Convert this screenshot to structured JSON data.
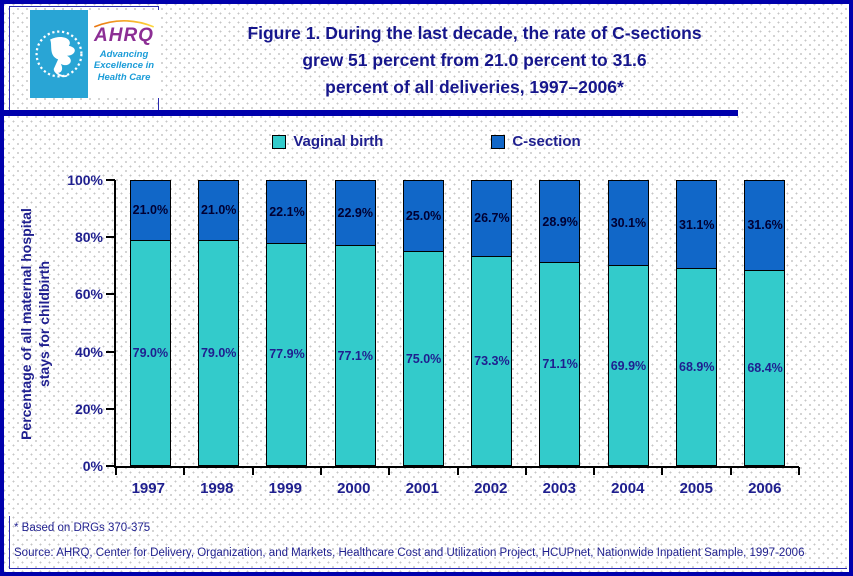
{
  "colors": {
    "page_border": "#0000AC",
    "navy_text": "#1F1F8F",
    "vaginal_bar": "#33CBCB",
    "csection_bar": "#1167C8",
    "csection_label_text": "#000033",
    "vaginal_label_text": "#1F1F8F",
    "logo_cyan": "#29A5D5",
    "logo_purple": "#8C2E94",
    "logo_tagline_blue": "#1A9CD8"
  },
  "header": {
    "title_lines": [
      "Figure 1. During the last decade, the rate of C-sections",
      "grew 51 percent from 21.0 percent to 31.6",
      "percent of all deliveries, 1997–2006*"
    ],
    "logo": {
      "acronym": "AHRQ",
      "tagline_lines": [
        "Advancing",
        "Excellence in",
        "Health Care"
      ]
    }
  },
  "legend": [
    {
      "label": "Vaginal birth",
      "color": "#33CBCB"
    },
    {
      "label": "C-section",
      "color": "#1167C8"
    }
  ],
  "chart_data": {
    "type": "bar",
    "stacked": true,
    "categories": [
      "1997",
      "1998",
      "1999",
      "2000",
      "2001",
      "2002",
      "2003",
      "2004",
      "2005",
      "2006"
    ],
    "series": [
      {
        "name": "Vaginal birth",
        "color": "#33CBCB",
        "label_color": "#1F1F8F",
        "values": [
          79.0,
          79.0,
          77.9,
          77.1,
          75.0,
          73.3,
          71.1,
          69.9,
          68.9,
          68.4
        ]
      },
      {
        "name": "C-section",
        "color": "#1167C8",
        "label_color": "#000033",
        "values": [
          21.0,
          21.0,
          22.1,
          22.9,
          25.0,
          26.7,
          28.9,
          30.1,
          31.1,
          31.6
        ]
      }
    ],
    "ylabel_lines": [
      "Percentage of all maternal hospital",
      "stays for childbirth"
    ],
    "yticks": [
      "0%",
      "20%",
      "40%",
      "60%",
      "80%",
      "100%"
    ],
    "ylim": [
      0,
      100
    ],
    "grid": false,
    "legend_position": "top"
  },
  "footer": {
    "note": "* Based on DRGs 370-375",
    "source": "Source: AHRQ, Center for Delivery, Organization, and Markets, Healthcare Cost and Utilization Project, HCUPnet, Nationwide Inpatient Sample, 1997-2006"
  }
}
